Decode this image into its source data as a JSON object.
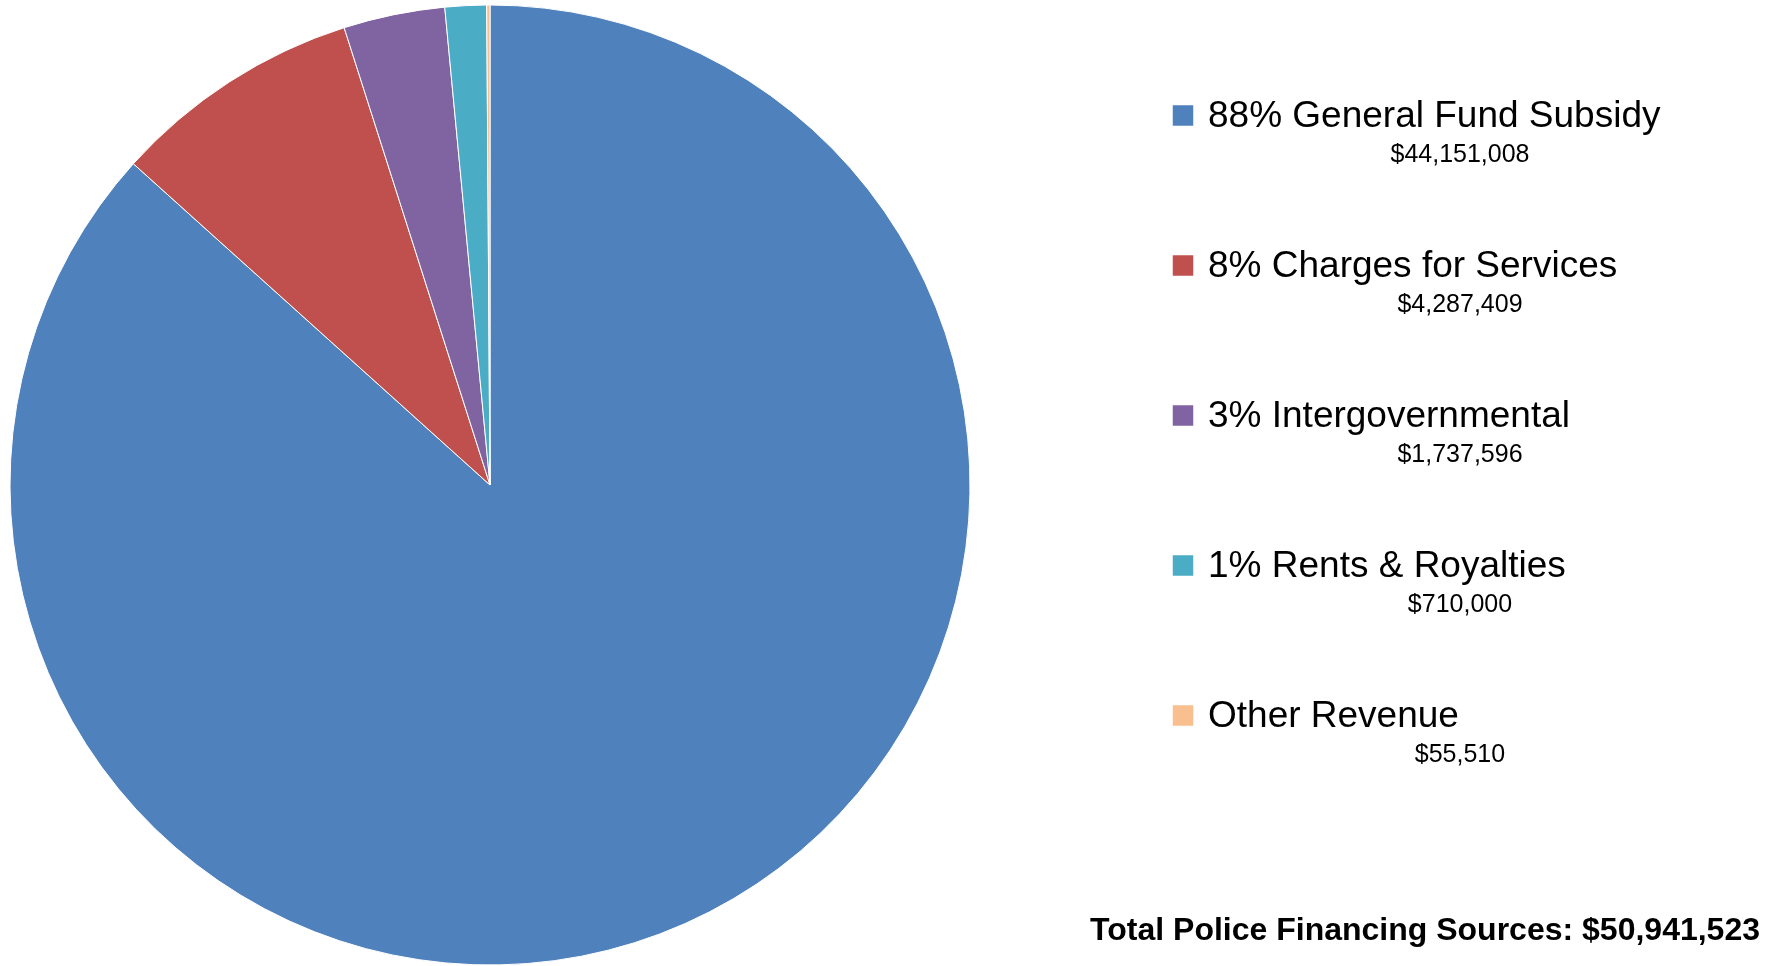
{
  "chart_data": {
    "type": "pie",
    "categories": [
      "88% General Fund Subsidy",
      "8% Charges for Services",
      "3% Intergovernmental",
      "1% Rents & Royalties",
      "Other Revenue"
    ],
    "values": [
      44151008,
      4287409,
      1737596,
      710000,
      55510
    ],
    "value_labels": [
      "$44,151,008",
      "$4,287,409",
      "$1,737,596",
      "$710,000",
      "$55,510"
    ],
    "colors": [
      "#4f81bd",
      "#c0504d",
      "#8064a2",
      "#4bacc6",
      "#f9bf8f"
    ],
    "legend": "right",
    "annotations": [
      "Total Police Financing Sources: $50,941,523"
    ]
  }
}
